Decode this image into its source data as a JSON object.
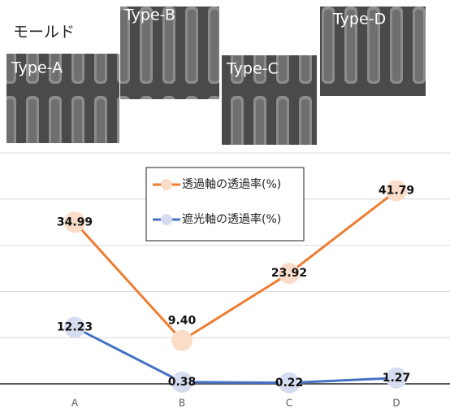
{
  "header": {
    "title": "モールド"
  },
  "images": [
    {
      "label": "Type-A"
    },
    {
      "label": "Type-B"
    },
    {
      "label": "Type-C"
    },
    {
      "label": "Type-D"
    }
  ],
  "chart_data": {
    "type": "line",
    "categories": [
      "A",
      "B",
      "C",
      "D"
    ],
    "series": [
      {
        "name": "透過軸の透過率(%)",
        "color": "#ed7d31",
        "marker_color": "#fbdcc8",
        "values": [
          34.99,
          9.4,
          23.92,
          41.79
        ],
        "value_labels": [
          "34.99",
          "9.40",
          "23.92",
          "41.79"
        ]
      },
      {
        "name": "遮光軸の透過率(%)",
        "color": "#4472c4",
        "marker_color": "#d7ddf1",
        "values": [
          12.23,
          0.38,
          0.22,
          1.27
        ],
        "value_labels": [
          "12.23",
          "0.38",
          "0.22",
          "1.27"
        ]
      }
    ],
    "ylim": [
      0,
      50
    ],
    "yticks": [
      0,
      10,
      20,
      30,
      40,
      50
    ],
    "grid": true
  }
}
